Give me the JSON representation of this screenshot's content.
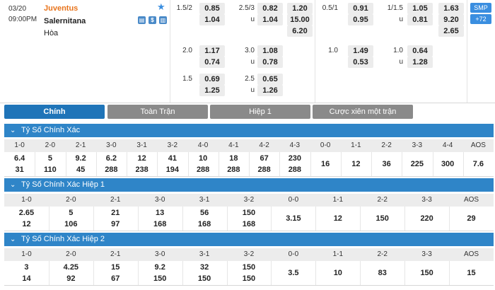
{
  "match": {
    "date": "03/20",
    "time": "09:00PM",
    "home": "Juventus",
    "away": "Salernitana",
    "draw": "Hòa",
    "icons": [
      "star-icon",
      "tv-icon",
      "dollar-icon",
      "stats-icon"
    ],
    "icon_glyphs": {
      "tv": "▤",
      "dollar": "$",
      "stats": "▥"
    },
    "smp": "SMP",
    "more": "+72",
    "markets": {
      "ah_ft_line": "1.5/2",
      "ah_ft_home": "0.85",
      "ah_ft_away": "1.04",
      "ou_ft_line": "2.5/3",
      "ou_ft_over": "0.82",
      "ou_ft_u": "u",
      "ou_ft_under": "1.04",
      "x12_ft": [
        "1.20",
        "15.00",
        "6.20"
      ],
      "ah_ht_line": "0.5/1",
      "ah_ht_home": "0.91",
      "ah_ht_away": "0.95",
      "ou_ht_line": "1/1.5",
      "ou_ht_over": "1.05",
      "ou_ht_u": "u",
      "ou_ht_under": "0.81",
      "x12_ht": [
        "1.63",
        "9.20",
        "2.65"
      ],
      "alt1": {
        "ah_line": "2.0",
        "ah_home": "1.17",
        "ah_away": "0.74",
        "ou_line": "3.0",
        "ou_over": "1.08",
        "ou_u": "u",
        "ou_under": "0.78",
        "ah_ht_line": "1.0",
        "ah_ht_home": "1.49",
        "ah_ht_away": "0.53",
        "ou_ht_line": "1.0",
        "ou_ht_over": "0.64",
        "ou_ht_u": "u",
        "ou_ht_under": "1.28"
      },
      "alt2": {
        "ah_line": "1.5",
        "ah_home": "0.69",
        "ah_away": "1.25",
        "ou_line": "2.5",
        "ou_over": "0.65",
        "ou_u": "u",
        "ou_under": "1.26"
      }
    }
  },
  "tabs": [
    "Chính",
    "Toàn Trận",
    "Hiệp 1",
    "Cược xiên một trận"
  ],
  "sections": [
    {
      "title": "Tỷ Số Chính Xác",
      "headers": [
        "1-0",
        "2-0",
        "2-1",
        "3-0",
        "3-1",
        "3-2",
        "4-0",
        "4-1",
        "4-2",
        "4-3",
        "0-0",
        "1-1",
        "2-2",
        "3-3",
        "4-4",
        "AOS"
      ],
      "top": [
        "6.4",
        "5",
        "9.2",
        "6.2",
        "12",
        "41",
        "10",
        "18",
        "67",
        "230"
      ],
      "bottom": [
        "31",
        "110",
        "45",
        "288",
        "238",
        "194",
        "288",
        "288",
        "288",
        "288"
      ],
      "single": [
        "16",
        "12",
        "36",
        "225",
        "300",
        "7.6"
      ]
    },
    {
      "title": "Tỷ Số Chính Xác Hiệp 1",
      "headers": [
        "1-0",
        "2-0",
        "2-1",
        "3-0",
        "3-1",
        "3-2",
        "0-0",
        "1-1",
        "2-2",
        "3-3",
        "AOS"
      ],
      "top": [
        "2.65",
        "5",
        "21",
        "13",
        "56",
        "150"
      ],
      "bottom": [
        "12",
        "106",
        "97",
        "168",
        "168",
        "168"
      ],
      "single": [
        "3.15",
        "12",
        "150",
        "220",
        "29"
      ]
    },
    {
      "title": "Tỷ Số Chính Xác Hiệp 2",
      "headers": [
        "1-0",
        "2-0",
        "2-1",
        "3-0",
        "3-1",
        "3-2",
        "0-0",
        "1-1",
        "2-2",
        "3-3",
        "AOS"
      ],
      "top": [
        "3",
        "4.25",
        "15",
        "9.2",
        "32",
        "150"
      ],
      "bottom": [
        "14",
        "92",
        "67",
        "150",
        "150",
        "150"
      ],
      "single": [
        "3.5",
        "10",
        "83",
        "150",
        "15"
      ]
    }
  ],
  "colors": {
    "accent": "#2f85c8",
    "home": "#e8741c",
    "tab_active": "#1f74b8",
    "tab_idle": "#8a8a8a",
    "odd_bg": "#ececec"
  }
}
